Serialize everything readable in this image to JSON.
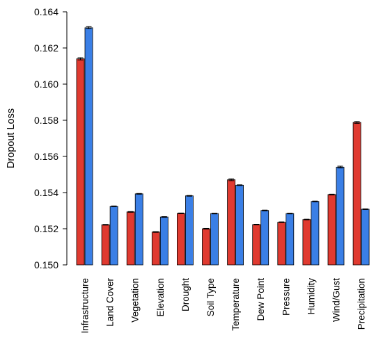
{
  "chart_data": {
    "type": "bar",
    "title": "",
    "xlabel": "",
    "ylabel": "Dropout Loss",
    "ylim": [
      0.15,
      0.164
    ],
    "yticks": [
      "0.150",
      "0.152",
      "0.154",
      "0.156",
      "0.158",
      "0.160",
      "0.162",
      "0.164"
    ],
    "grid": false,
    "categories": [
      "Infrastructure",
      "Land Cover",
      "Vegetation",
      "Elevation",
      "Drought",
      "Soil Type",
      "Temperature",
      "Dew Point",
      "Pressure",
      "Humidity",
      "Wind/Gust",
      "Precipitation"
    ],
    "series": [
      {
        "color": "#e03a30",
        "values": [
          0.1614,
          0.15222,
          0.15293,
          0.15182,
          0.15285,
          0.152,
          0.15471,
          0.15223,
          0.15236,
          0.15251,
          0.15389,
          0.15788
        ],
        "errors": [
          6e-05,
          2e-05,
          2e-05,
          2e-05,
          2e-05,
          2e-05,
          5e-05,
          2e-05,
          2e-05,
          2e-05,
          2e-05,
          5e-05
        ]
      },
      {
        "color": "#3a7fe6",
        "values": [
          0.16312,
          0.15324,
          0.15393,
          0.15265,
          0.15382,
          0.15284,
          0.15441,
          0.15301,
          0.15284,
          0.15351,
          0.15541,
          0.15308
        ],
        "errors": [
          6e-05,
          2e-05,
          2e-05,
          2e-05,
          2e-05,
          2e-05,
          2e-05,
          2e-05,
          2e-05,
          2e-05,
          5e-05,
          2e-05
        ]
      }
    ]
  }
}
